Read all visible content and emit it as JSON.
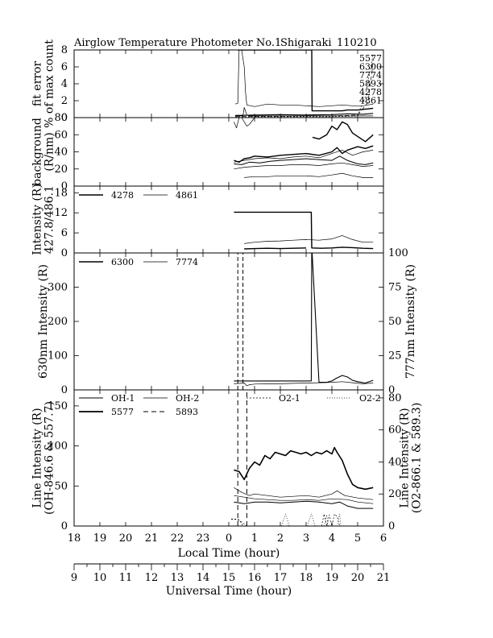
{
  "title": {
    "instrument": "Airglow Temperature Photometer No.1",
    "site": "Shigaraki",
    "date": "110210"
  },
  "chart_data": [
    {
      "id": "fit_error",
      "type": "line",
      "ylabel": [
        "fit error",
        "% of max count"
      ],
      "ylim": [
        0,
        8
      ],
      "yticks": [
        0,
        2,
        4,
        6,
        8
      ],
      "legend_labels": [
        "5577",
        "6300",
        "7774",
        "5893",
        "4278",
        "4861"
      ],
      "series": [
        {
          "name": "6300",
          "stroke": 1.4,
          "dash": "",
          "x": [
            0.35,
            3.22,
            3.23,
            3.6,
            4.4,
            4.6,
            5.0,
            5.6
          ],
          "y": [
            8.0,
            8.0,
            0.8,
            0.8,
            0.8,
            0.9,
            0.9,
            1.1
          ]
        },
        {
          "name": "4861",
          "stroke": 0.7,
          "dash": "",
          "x": [
            0.25,
            0.35,
            0.4,
            0.5,
            0.6,
            0.65,
            0.7,
            1.0,
            1.5,
            2.0,
            2.5,
            3.0,
            3.5,
            4.0,
            4.4,
            4.8,
            5.2,
            5.6
          ],
          "y": [
            1.6,
            1.7,
            8.0,
            8.0,
            6.0,
            3.0,
            1.5,
            1.3,
            1.6,
            1.5,
            1.5,
            1.4,
            1.3,
            1.4,
            1.5,
            1.4,
            1.4,
            1.6
          ]
        },
        {
          "name": "5577",
          "stroke": 1.2,
          "dash": "",
          "x": [
            0.25,
            1.0,
            2.0,
            3.0,
            4.0,
            4.6,
            5.2,
            5.6
          ],
          "y": [
            0.25,
            0.3,
            0.35,
            0.3,
            0.35,
            0.45,
            0.4,
            0.5
          ]
        },
        {
          "name": "7774",
          "stroke": 0.7,
          "dash": "",
          "x": [
            0.25,
            0.55,
            0.6,
            0.7,
            0.8,
            1.0,
            2.0,
            3.0,
            4.0,
            5.0,
            5.6
          ],
          "y": [
            0.2,
            0.2,
            1.2,
            0.3,
            0.2,
            0.2,
            0.2,
            0.2,
            0.2,
            0.2,
            0.2
          ]
        },
        {
          "name": "5893",
          "stroke": 0.7,
          "dash": "5,3",
          "x": [
            0.25,
            1.0,
            2.0,
            3.0,
            4.0,
            5.0,
            5.4,
            5.6
          ],
          "y": [
            0.1,
            0.15,
            0.15,
            0.2,
            0.2,
            0.3,
            1.8,
            6.5
          ]
        },
        {
          "name": "4278",
          "stroke": 0.7,
          "dash": "2,2",
          "x": [
            0.25,
            1.0,
            2.0,
            3.0,
            4.0,
            5.0,
            5.3,
            5.6
          ],
          "y": [
            0.1,
            0.1,
            0.1,
            0.1,
            0.1,
            0.2,
            2.5,
            7.5
          ]
        }
      ]
    },
    {
      "id": "background",
      "type": "line",
      "ylabel": [
        "background",
        "(R/nm)"
      ],
      "ylim": [
        0,
        80
      ],
      "yticks": [
        0,
        20,
        40,
        60,
        80
      ],
      "series": [
        {
          "name": "",
          "stroke": 0.7,
          "dash": "",
          "x": [
            0.2,
            0.3,
            0.4,
            0.5,
            0.6,
            0.7,
            0.8,
            1.0
          ],
          "y": [
            75,
            68,
            80,
            80,
            75,
            70,
            72,
            80
          ]
        },
        {
          "name": "",
          "stroke": 1.4,
          "dash": "",
          "x": [
            3.25,
            3.5,
            3.8,
            4.0,
            4.2,
            4.4,
            4.6,
            4.8,
            5.0,
            5.3,
            5.6
          ],
          "y": [
            57,
            55,
            60,
            70,
            66,
            75,
            72,
            62,
            58,
            52,
            60
          ]
        },
        {
          "name": "",
          "stroke": 1.4,
          "dash": "",
          "x": [
            0.2,
            0.4,
            0.6,
            0.8,
            1.0,
            1.5,
            2.0,
            2.5,
            3.0,
            3.5,
            4.0,
            4.2,
            4.4,
            4.6,
            5.0,
            5.3,
            5.6
          ],
          "y": [
            30,
            28,
            32,
            33,
            35,
            34,
            36,
            37,
            38,
            36,
            40,
            45,
            38,
            42,
            46,
            44,
            47
          ]
        },
        {
          "name": "",
          "stroke": 0.7,
          "dash": "",
          "x": [
            0.2,
            0.6,
            1.0,
            1.5,
            2.0,
            2.5,
            3.0,
            3.5,
            4.0,
            4.4,
            4.8,
            5.2,
            5.6
          ],
          "y": [
            28,
            30,
            32,
            33,
            32,
            34,
            35,
            33,
            38,
            42,
            36,
            40,
            42
          ]
        },
        {
          "name": "",
          "stroke": 1.0,
          "dash": "",
          "x": [
            0.2,
            0.5,
            0.8,
            1.2,
            1.6,
            2.0,
            2.5,
            3.0,
            3.5,
            4.0,
            4.3,
            4.6,
            5.0,
            5.3,
            5.6
          ],
          "y": [
            26,
            25,
            28,
            27,
            29,
            30,
            31,
            32,
            31,
            30,
            35,
            30,
            26,
            25,
            27
          ]
        },
        {
          "name": "",
          "stroke": 0.7,
          "dash": "",
          "x": [
            0.2,
            0.6,
            1.0,
            1.5,
            2.0,
            2.5,
            3.0,
            3.5,
            4.0,
            4.4,
            4.8,
            5.2,
            5.6
          ],
          "y": [
            20,
            22,
            23,
            24,
            24,
            25,
            25,
            24,
            26,
            27,
            25,
            23,
            24
          ]
        },
        {
          "name": "",
          "stroke": 0.7,
          "dash": "",
          "x": [
            0.6,
            1.0,
            1.5,
            2.0,
            2.5,
            3.0,
            3.5,
            4.0,
            4.4,
            4.8,
            5.2,
            5.6
          ],
          "y": [
            10,
            11,
            11,
            12,
            12,
            12,
            11,
            13,
            15,
            12,
            10,
            10
          ]
        }
      ]
    },
    {
      "id": "intensity_4278_4861",
      "type": "line",
      "ylabel": [
        "Intensity (R)",
        "427.8/486.1"
      ],
      "ylim": [
        0,
        20
      ],
      "yticks": [
        0,
        6,
        12,
        18
      ],
      "legend": [
        {
          "name": "4278",
          "stroke": 1.4,
          "dash": ""
        },
        {
          "name": "4861",
          "stroke": 0.7,
          "dash": ""
        }
      ],
      "series": [
        {
          "name": "4278",
          "stroke": 1.4,
          "dash": "",
          "x": [
            0.2,
            3.2,
            3.22,
            3.6,
            4.0,
            4.4,
            4.8,
            5.2,
            5.6
          ],
          "y": [
            12.2,
            12.2,
            1.5,
            1.4,
            1.5,
            1.7,
            1.6,
            1.4,
            1.3
          ]
        },
        {
          "name": "4278",
          "stroke": 1.4,
          "dash": "",
          "x": [
            0.6,
            1.0,
            1.5,
            2.0,
            2.5,
            3.0
          ],
          "y": [
            1.2,
            1.3,
            1.4,
            1.3,
            1.4,
            1.5
          ]
        },
        {
          "name": "4861",
          "stroke": 0.7,
          "dash": "",
          "x": [
            0.6,
            1.0,
            1.5,
            2.0,
            2.5,
            3.0,
            3.5,
            4.0,
            4.4,
            4.8,
            5.2,
            5.6
          ],
          "y": [
            2.8,
            3.2,
            3.5,
            3.6,
            3.8,
            4.0,
            3.8,
            4.2,
            5.2,
            4.0,
            3.2,
            3.2
          ]
        }
      ]
    },
    {
      "id": "intensity_6300_7774",
      "type": "line",
      "ylabel": "630nm Intensity (R)",
      "ylabel_right": "777nm Intensity (R)",
      "ylim": [
        0,
        400
      ],
      "yticks": [
        0,
        100,
        200,
        300
      ],
      "ylim_right": [
        0,
        100
      ],
      "yticks_right": [
        0,
        25,
        50,
        75,
        100
      ],
      "legend": [
        {
          "name": "6300",
          "stroke": 1.4,
          "dash": ""
        },
        {
          "name": "7774",
          "stroke": 0.7,
          "dash": ""
        }
      ],
      "series": [
        {
          "name": "6300",
          "stroke": 1.1,
          "dash": "",
          "x": [
            0.2,
            3.2,
            3.22,
            3.5,
            3.8,
            4.0,
            4.2,
            4.4,
            4.6,
            4.8,
            5.0,
            5.3,
            5.6
          ],
          "y": [
            26,
            26,
            420,
            22,
            22,
            26,
            35,
            42,
            38,
            28,
            24,
            20,
            28
          ]
        },
        {
          "name": "7774",
          "stroke": 0.7,
          "dash": "",
          "x": [
            0.2,
            0.6,
            0.7,
            0.8,
            1.0,
            1.5,
            2.0,
            2.5,
            3.0,
            3.5,
            4.0,
            4.4,
            4.8,
            5.2,
            5.6
          ],
          "y": [
            18,
            20,
            12,
            15,
            17,
            18,
            18,
            19,
            20,
            21,
            22,
            24,
            21,
            18,
            20
          ]
        },
        {
          "name": "",
          "stroke": 1.0,
          "dash": "5,3",
          "x": [
            0.35,
            0.35
          ],
          "y": [
            0,
            400
          ]
        },
        {
          "name": "",
          "stroke": 1.0,
          "dash": "5,3",
          "x": [
            0.55,
            0.55
          ],
          "y": [
            0,
            400
          ]
        }
      ]
    },
    {
      "id": "line_intensity",
      "type": "line",
      "ylabel": [
        "Line Intensity (R)",
        "(OH-846.6 & 557.7)"
      ],
      "ylabel_right": [
        "Line Intensity (R)",
        "(O2-866.1 & 589.3)"
      ],
      "ylim": [
        0,
        170
      ],
      "yticks": [
        0,
        50,
        100,
        150
      ],
      "ylim_right": [
        0,
        85
      ],
      "yticks_right": [
        0,
        20,
        40,
        60,
        80
      ],
      "legend": [
        {
          "name": "OH-1",
          "stroke": 1.0,
          "dash": ""
        },
        {
          "name": "OH-2",
          "stroke": 0.7,
          "dash": ""
        },
        {
          "name": "O2-1",
          "stroke": 0.7,
          "dash": "2,2"
        },
        {
          "name": "O2-2",
          "stroke": 0.7,
          "dash": "1,2"
        },
        {
          "name": "5577",
          "stroke": 1.8,
          "dash": ""
        },
        {
          "name": "5893",
          "stroke": 1.0,
          "dash": "6,4"
        }
      ],
      "series": [
        {
          "name": "5577",
          "stroke": 1.6,
          "dash": "",
          "x": [
            0.2,
            0.4,
            0.6,
            0.8,
            1.0,
            1.2,
            1.4,
            1.6,
            1.8,
            2.0,
            2.2,
            2.4,
            2.6,
            2.8,
            3.0,
            3.2,
            3.4,
            3.6,
            3.8,
            4.0,
            4.1,
            4.2,
            4.4,
            4.6,
            4.8,
            5.0,
            5.3,
            5.6
          ],
          "y": [
            70,
            68,
            58,
            72,
            80,
            76,
            88,
            84,
            92,
            90,
            88,
            94,
            92,
            90,
            92,
            88,
            92,
            90,
            94,
            90,
            98,
            92,
            82,
            65,
            52,
            48,
            46,
            48
          ]
        },
        {
          "name": "OH-2",
          "stroke": 0.7,
          "dash": "",
          "x": [
            0.2,
            0.5,
            0.8,
            1.0,
            1.5,
            2.0,
            2.5,
            3.0,
            3.5,
            4.0,
            4.2,
            4.5,
            5.0,
            5.6
          ],
          "y": [
            48,
            42,
            38,
            40,
            38,
            36,
            37,
            38,
            36,
            40,
            44,
            38,
            35,
            33
          ]
        },
        {
          "name": "OH-1",
          "stroke": 1.0,
          "dash": "",
          "x": [
            0.2,
            0.6,
            1.0,
            1.5,
            2.0,
            2.5,
            3.0,
            3.5,
            4.0,
            4.3,
            4.6,
            5.0,
            5.6
          ],
          "y": [
            30,
            28,
            30,
            30,
            29,
            30,
            31,
            30,
            28,
            30,
            25,
            22,
            22
          ]
        },
        {
          "name": "OH-1",
          "stroke": 0.7,
          "dash": "",
          "x": [
            0.2,
            0.6,
            1.0,
            1.5,
            2.0,
            2.5,
            3.0,
            3.5,
            4.0,
            4.6,
            5.0,
            5.6
          ],
          "y": [
            38,
            36,
            34,
            33,
            32,
            32,
            33,
            32,
            34,
            33,
            30,
            28
          ]
        },
        {
          "name": "5893",
          "stroke": 1.0,
          "dash": "6,4",
          "x": [
            0.35,
            0.35
          ],
          "y": [
            0,
            170
          ]
        },
        {
          "name": "5893",
          "stroke": 1.0,
          "dash": "6,4",
          "x": [
            0.7,
            0.7
          ],
          "y": [
            0,
            170
          ]
        },
        {
          "name": "O2-1",
          "stroke": 0.7,
          "dash": "2,2",
          "x": [
            0.1,
            0.3,
            0.5,
            0.7,
            0.9
          ],
          "y": [
            9,
            8,
            5,
            0,
            0
          ]
        },
        {
          "name": "O2-1",
          "stroke": 0.7,
          "dash": "2,2",
          "x": [
            0.1,
            0.2,
            0.4,
            0.55
          ],
          "y": [
            8,
            9,
            8,
            0
          ]
        },
        {
          "name": "O2-2",
          "stroke": 0.7,
          "dash": "1,2",
          "x": [
            2.05,
            2.2,
            2.35
          ],
          "y": [
            0,
            15,
            0
          ]
        },
        {
          "name": "O2-2",
          "stroke": 0.7,
          "dash": "1,2",
          "x": [
            3.05,
            3.2,
            3.35
          ],
          "y": [
            0,
            15,
            0
          ]
        },
        {
          "name": "O2-1",
          "stroke": 0.7,
          "dash": "2,2",
          "x": [
            3.6,
            3.7,
            3.8,
            3.9,
            4.0,
            4.1,
            4.2,
            4.3
          ],
          "y": [
            0,
            15,
            0,
            14,
            0,
            15,
            12,
            0
          ]
        },
        {
          "name": "O2-2",
          "stroke": 0.7,
          "dash": "1,2",
          "x": [
            3.7,
            3.8,
            3.85,
            4.2,
            4.3,
            4.35
          ],
          "y": [
            0,
            14,
            0,
            0,
            15,
            0
          ]
        }
      ]
    }
  ],
  "x_axes": {
    "local_time": {
      "label": "Local Time (hour)",
      "ticks": [
        "18",
        "19",
        "20",
        "21",
        "22",
        "23",
        "0",
        "1",
        "2",
        "3",
        "4",
        "5",
        "6"
      ]
    },
    "universal_time": {
      "label": "Universal Time (hour)",
      "ticks": [
        "9",
        "10",
        "11",
        "12",
        "13",
        "14",
        "15",
        "16",
        "17",
        "18",
        "19",
        "20",
        "21"
      ]
    }
  }
}
